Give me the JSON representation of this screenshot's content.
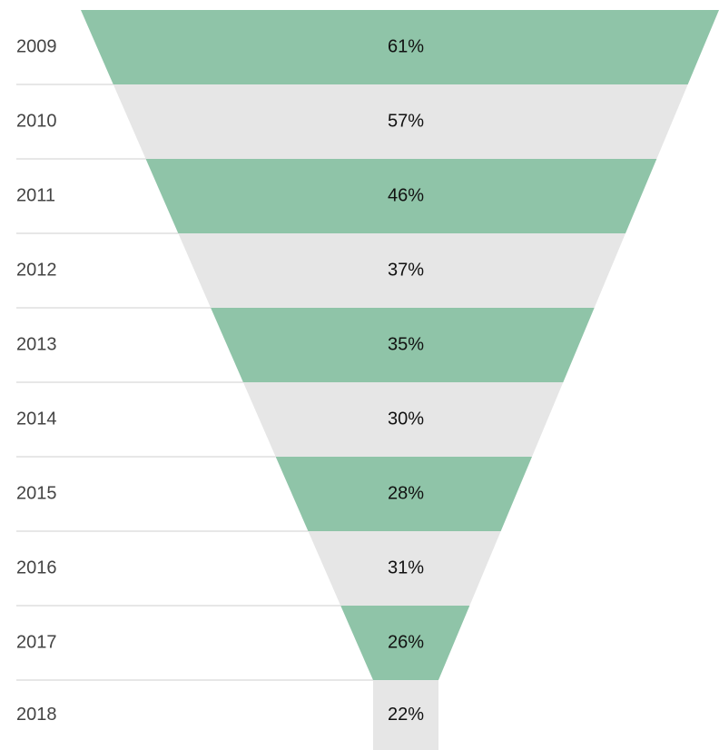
{
  "chart_data": {
    "type": "funnel",
    "categories": [
      "2009",
      "2010",
      "2011",
      "2012",
      "2013",
      "2014",
      "2015",
      "2016",
      "2017",
      "2018"
    ],
    "values": [
      61,
      57,
      46,
      37,
      35,
      30,
      28,
      31,
      26,
      22
    ],
    "value_labels": [
      "61%",
      "57%",
      "46%",
      "37%",
      "35%",
      "30%",
      "28%",
      "31%",
      "26%",
      "22%"
    ],
    "colors": [
      "#8fc4a8",
      "#e6e6e6"
    ]
  }
}
